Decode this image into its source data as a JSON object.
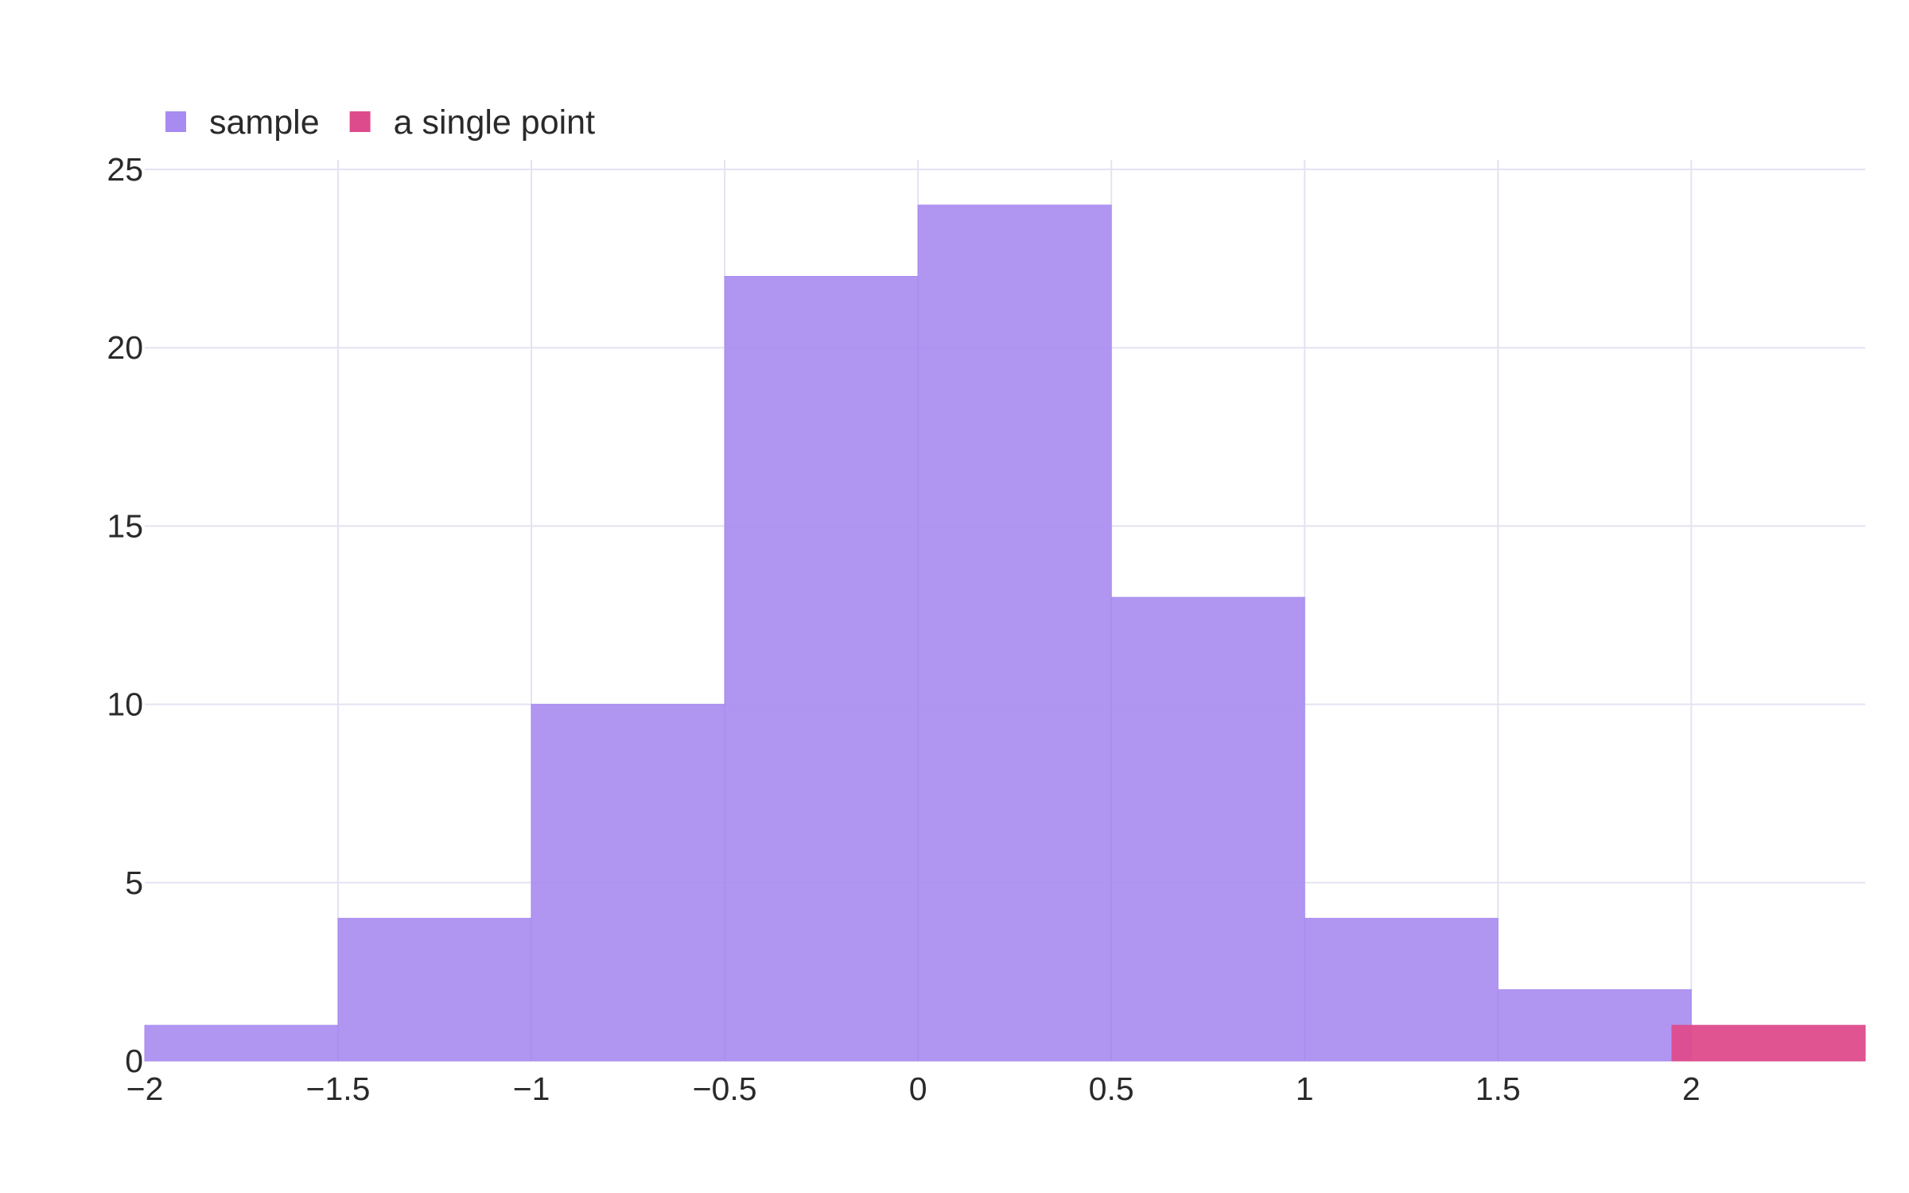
{
  "chart_data": {
    "type": "bar",
    "title": "",
    "xlabel": "",
    "ylabel": "",
    "xlim": [
      -2,
      2.45
    ],
    "ylim": [
      0,
      25
    ],
    "grid": true,
    "legend_placement": "top-left",
    "x_ticks": [
      "−2",
      "−1.5",
      "−1",
      "−0.5",
      "0",
      "0.5",
      "1",
      "1.5",
      "2"
    ],
    "y_ticks": [
      "0",
      "5",
      "10",
      "15",
      "20",
      "25"
    ],
    "series": [
      {
        "name": "sample",
        "color": "#a78bf0",
        "bins": [
          {
            "x0": -2.0,
            "x1": -1.5,
            "count": 1
          },
          {
            "x0": -1.5,
            "x1": -1.0,
            "count": 4
          },
          {
            "x0": -1.0,
            "x1": -0.5,
            "count": 10
          },
          {
            "x0": -0.5,
            "x1": 0.0,
            "count": 22
          },
          {
            "x0": 0.0,
            "x1": 0.5,
            "count": 24
          },
          {
            "x0": 0.5,
            "x1": 1.0,
            "count": 13
          },
          {
            "x0": 1.0,
            "x1": 1.5,
            "count": 4
          },
          {
            "x0": 1.5,
            "x1": 2.0,
            "count": 2
          }
        ]
      },
      {
        "name": "a single point",
        "color": "#de4b8c",
        "bins": [
          {
            "x0": 1.95,
            "x1": 2.45,
            "count": 1
          }
        ]
      }
    ]
  }
}
